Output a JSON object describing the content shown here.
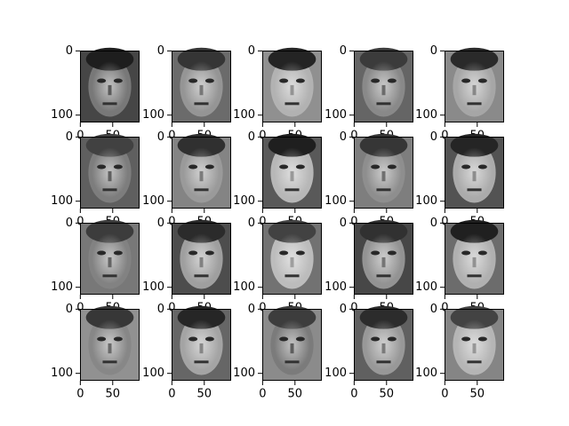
{
  "chart_data": [
    {
      "type": "image",
      "xlim": [
        -0.5,
        91.5
      ],
      "ylim": [
        111.5,
        -0.5
      ],
      "xticks": [
        0,
        50
      ],
      "yticks": [
        0,
        100
      ]
    },
    {
      "type": "image",
      "xlim": [
        -0.5,
        91.5
      ],
      "ylim": [
        111.5,
        -0.5
      ],
      "xticks": [
        0,
        50
      ],
      "yticks": [
        0,
        100
      ]
    },
    {
      "type": "image",
      "xlim": [
        -0.5,
        91.5
      ],
      "ylim": [
        111.5,
        -0.5
      ],
      "xticks": [
        0,
        50
      ],
      "yticks": [
        0,
        100
      ]
    },
    {
      "type": "image",
      "xlim": [
        -0.5,
        91.5
      ],
      "ylim": [
        111.5,
        -0.5
      ],
      "xticks": [
        0,
        50
      ],
      "yticks": [
        0,
        100
      ]
    },
    {
      "type": "image",
      "xlim": [
        -0.5,
        91.5
      ],
      "ylim": [
        111.5,
        -0.5
      ],
      "xticks": [
        0,
        50
      ],
      "yticks": [
        0,
        100
      ]
    },
    {
      "type": "image",
      "xlim": [
        -0.5,
        91.5
      ],
      "ylim": [
        111.5,
        -0.5
      ],
      "xticks": [
        0,
        50
      ],
      "yticks": [
        0,
        100
      ]
    },
    {
      "type": "image",
      "xlim": [
        -0.5,
        91.5
      ],
      "ylim": [
        111.5,
        -0.5
      ],
      "xticks": [
        0,
        50
      ],
      "yticks": [
        0,
        100
      ]
    },
    {
      "type": "image",
      "xlim": [
        -0.5,
        91.5
      ],
      "ylim": [
        111.5,
        -0.5
      ],
      "xticks": [
        0,
        50
      ],
      "yticks": [
        0,
        100
      ]
    },
    {
      "type": "image",
      "xlim": [
        -0.5,
        91.5
      ],
      "ylim": [
        111.5,
        -0.5
      ],
      "xticks": [
        0,
        50
      ],
      "yticks": [
        0,
        100
      ]
    },
    {
      "type": "image",
      "xlim": [
        -0.5,
        91.5
      ],
      "ylim": [
        111.5,
        -0.5
      ],
      "xticks": [
        0,
        50
      ],
      "yticks": [
        0,
        100
      ]
    },
    {
      "type": "image",
      "xlim": [
        -0.5,
        91.5
      ],
      "ylim": [
        111.5,
        -0.5
      ],
      "xticks": [
        0,
        50
      ],
      "yticks": [
        0,
        100
      ]
    },
    {
      "type": "image",
      "xlim": [
        -0.5,
        91.5
      ],
      "ylim": [
        111.5,
        -0.5
      ],
      "xticks": [
        0,
        50
      ],
      "yticks": [
        0,
        100
      ]
    },
    {
      "type": "image",
      "xlim": [
        -0.5,
        91.5
      ],
      "ylim": [
        111.5,
        -0.5
      ],
      "xticks": [
        0,
        50
      ],
      "yticks": [
        0,
        100
      ]
    },
    {
      "type": "image",
      "xlim": [
        -0.5,
        91.5
      ],
      "ylim": [
        111.5,
        -0.5
      ],
      "xticks": [
        0,
        50
      ],
      "yticks": [
        0,
        100
      ]
    },
    {
      "type": "image",
      "xlim": [
        -0.5,
        91.5
      ],
      "ylim": [
        111.5,
        -0.5
      ],
      "xticks": [
        0,
        50
      ],
      "yticks": [
        0,
        100
      ]
    },
    {
      "type": "image",
      "xlim": [
        -0.5,
        91.5
      ],
      "ylim": [
        111.5,
        -0.5
      ],
      "xticks": [
        0,
        50
      ],
      "yticks": [
        0,
        100
      ]
    },
    {
      "type": "image",
      "xlim": [
        -0.5,
        91.5
      ],
      "ylim": [
        111.5,
        -0.5
      ],
      "xticks": [
        0,
        50
      ],
      "yticks": [
        0,
        100
      ]
    },
    {
      "type": "image",
      "xlim": [
        -0.5,
        91.5
      ],
      "ylim": [
        111.5,
        -0.5
      ],
      "xticks": [
        0,
        50
      ],
      "yticks": [
        0,
        100
      ]
    },
    {
      "type": "image",
      "xlim": [
        -0.5,
        91.5
      ],
      "ylim": [
        111.5,
        -0.5
      ],
      "xticks": [
        0,
        50
      ],
      "yticks": [
        0,
        100
      ]
    },
    {
      "type": "image",
      "xlim": [
        -0.5,
        91.5
      ],
      "ylim": [
        111.5,
        -0.5
      ],
      "xticks": [
        0,
        50
      ],
      "yticks": [
        0,
        100
      ]
    }
  ]
}
